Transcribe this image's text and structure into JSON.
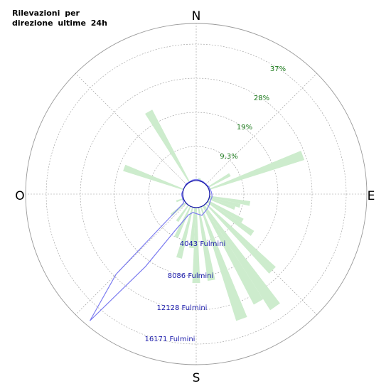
{
  "title": "Rilevazioni per direzione ultime 24h",
  "colors": {
    "petal": "#cdeccd",
    "line": "#7b7bf0",
    "circle_stroke": "#1a1aaa",
    "grid": "#9a9a9a",
    "pct_text": "#1a7a1a",
    "count_text": "#1a1aaa"
  },
  "chart_data": {
    "type": "polar-rose",
    "cardinals": [
      "N",
      "E",
      "S",
      "O"
    ],
    "percent_rings": [
      "9,3%",
      "19%",
      "28%",
      "37%"
    ],
    "percent_ring_values": [
      9.3,
      19,
      28,
      37
    ],
    "count_rings": [
      "4043 Fulmini",
      "8086 Fulmini",
      "12128 Fulmini",
      "16171 Fulmini"
    ],
    "count_ring_values": [
      4043,
      8086,
      12128,
      16171
    ],
    "grid": true,
    "bin_width_deg": 5,
    "percent_by_direction": [
      {
        "dir": 10,
        "pct": 0.8
      },
      {
        "dir": 15,
        "pct": 0.7
      },
      {
        "dir": 60,
        "pct": 7.0
      },
      {
        "dir": 70,
        "pct": 27.5
      },
      {
        "dir": 100,
        "pct": 11.3
      },
      {
        "dir": 105,
        "pct": 8.8
      },
      {
        "dir": 110,
        "pct": 7.6
      },
      {
        "dir": 120,
        "pct": 11.0
      },
      {
        "dir": 125,
        "pct": 15.2
      },
      {
        "dir": 135,
        "pct": 26.0
      },
      {
        "dir": 145,
        "pct": 34.2
      },
      {
        "dir": 150,
        "pct": 30.6
      },
      {
        "dir": 160,
        "pct": 32.9
      },
      {
        "dir": 170,
        "pct": 20.4
      },
      {
        "dir": 180,
        "pct": 20.8
      },
      {
        "dir": 185,
        "pct": 11.2
      },
      {
        "dir": 195,
        "pct": 14.5
      },
      {
        "dir": 205,
        "pct": 9.4
      },
      {
        "dir": 215,
        "pct": 5.4
      },
      {
        "dir": 230,
        "pct": 5.2
      },
      {
        "dir": 250,
        "pct": 2.1
      },
      {
        "dir": 290,
        "pct": 17.4
      },
      {
        "dir": 330,
        "pct": 22.5
      }
    ],
    "counts_by_direction": [
      {
        "dir": 0,
        "count": 150
      },
      {
        "dir": 15,
        "count": 100
      },
      {
        "dir": 30,
        "count": 80
      },
      {
        "dir": 60,
        "count": 120
      },
      {
        "dir": 80,
        "count": 200
      },
      {
        "dir": 90,
        "count": 250
      },
      {
        "dir": 100,
        "count": 300
      },
      {
        "dir": 115,
        "count": 250
      },
      {
        "dir": 130,
        "count": 400
      },
      {
        "dir": 145,
        "count": 600
      },
      {
        "dir": 165,
        "count": 1000
      },
      {
        "dir": 180,
        "count": 700
      },
      {
        "dir": 190,
        "count": 600
      },
      {
        "dir": 200,
        "count": 1000
      },
      {
        "dir": 210,
        "count": 3300
      },
      {
        "dir": 215,
        "count": 8800
      },
      {
        "dir": 220,
        "count": 17800
      },
      {
        "dir": 225,
        "count": 11700
      },
      {
        "dir": 235,
        "count": 200
      },
      {
        "dir": 270,
        "count": 150
      },
      {
        "dir": 315,
        "count": 100
      },
      {
        "dir": 345,
        "count": 120
      }
    ]
  }
}
